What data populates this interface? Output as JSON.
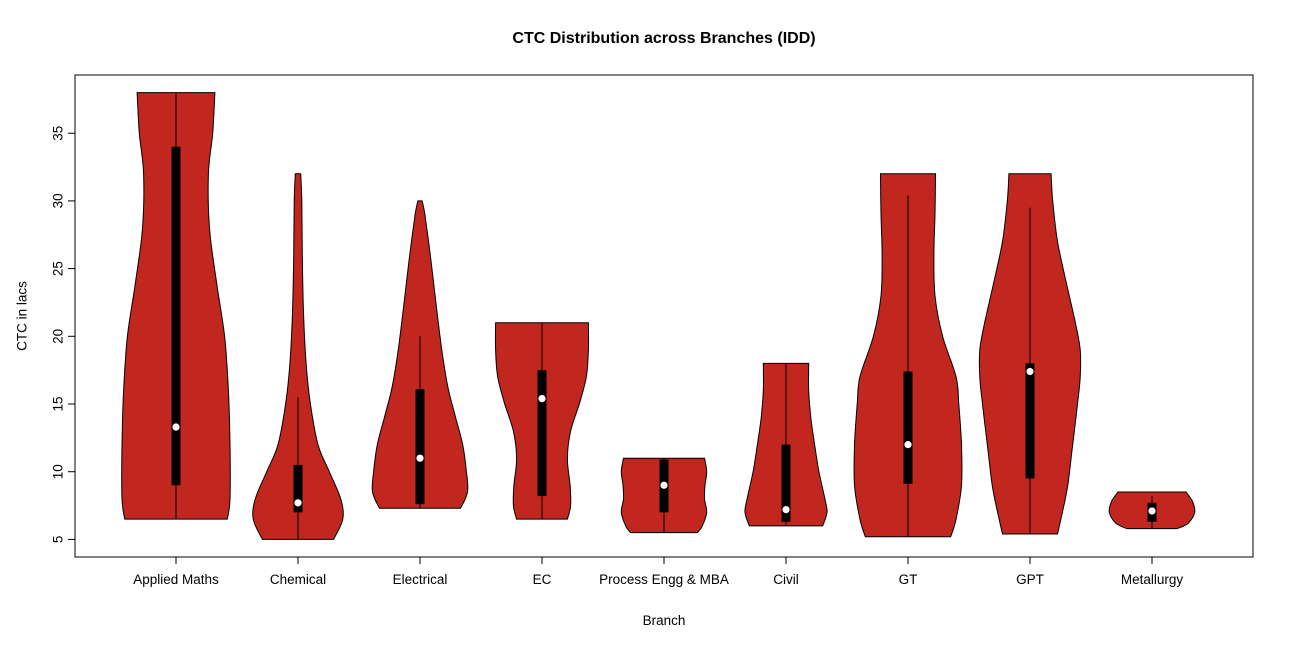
{
  "chart_data": {
    "type": "violin",
    "title": "CTC Distribution across Branches (IDD)",
    "xlabel": "Branch",
    "ylabel": "CTC in lacs",
    "ylim": [
      3.7,
      39.3
    ],
    "yticks": [
      5,
      10,
      15,
      20,
      25,
      30,
      35
    ],
    "grid": false,
    "fill_color": "#C1271E",
    "categories": [
      "Applied Maths",
      "Chemical",
      "Electrical",
      "EC",
      "Process Engg & MBA",
      "Civil",
      "GT",
      "GPT",
      "Metallurgy"
    ],
    "series": [
      {
        "name": "Applied Maths",
        "min": 6.5,
        "max": 38,
        "q1": 9.0,
        "q3": 34.0,
        "median": 13.3,
        "whisker_low": 6.5,
        "whisker_high": 38,
        "shape": [
          [
            6.5,
            0.95
          ],
          [
            8,
            1.0
          ],
          [
            12,
            1.0
          ],
          [
            16,
            0.97
          ],
          [
            20,
            0.9
          ],
          [
            24,
            0.75
          ],
          [
            28,
            0.62
          ],
          [
            32,
            0.6
          ],
          [
            35,
            0.68
          ],
          [
            38,
            0.72
          ]
        ]
      },
      {
        "name": "Chemical",
        "min": 5.0,
        "max": 32,
        "q1": 7.0,
        "q3": 10.5,
        "median": 7.7,
        "whisker_low": 5.0,
        "whisker_high": 15.5,
        "shape": [
          [
            5,
            0.66
          ],
          [
            6.5,
            0.83
          ],
          [
            8,
            0.79
          ],
          [
            10,
            0.58
          ],
          [
            12,
            0.37
          ],
          [
            15,
            0.23
          ],
          [
            18,
            0.15
          ],
          [
            22,
            0.1
          ],
          [
            26,
            0.08
          ],
          [
            30,
            0.07
          ],
          [
            32,
            0.05
          ]
        ]
      },
      {
        "name": "Electrical",
        "min": 7.3,
        "max": 30,
        "q1": 7.6,
        "q3": 16.1,
        "median": 11.0,
        "whisker_low": 7.3,
        "whisker_high": 20.0,
        "shape": [
          [
            7.3,
            0.75
          ],
          [
            8.5,
            0.88
          ],
          [
            10,
            0.86
          ],
          [
            12,
            0.79
          ],
          [
            14,
            0.66
          ],
          [
            16,
            0.53
          ],
          [
            18,
            0.44
          ],
          [
            20,
            0.37
          ],
          [
            23,
            0.28
          ],
          [
            26,
            0.19
          ],
          [
            29,
            0.09
          ],
          [
            30,
            0.04
          ]
        ]
      },
      {
        "name": "EC",
        "min": 6.5,
        "max": 21,
        "q1": 8.2,
        "q3": 17.5,
        "median": 15.4,
        "whisker_low": 6.5,
        "whisker_high": 21,
        "shape": [
          [
            6.5,
            0.47
          ],
          [
            7.5,
            0.53
          ],
          [
            9,
            0.52
          ],
          [
            11,
            0.47
          ],
          [
            13,
            0.53
          ],
          [
            15,
            0.69
          ],
          [
            17,
            0.82
          ],
          [
            19,
            0.86
          ],
          [
            21,
            0.86
          ]
        ]
      },
      {
        "name": "Process Engg & MBA",
        "min": 5.5,
        "max": 11,
        "q1": 7.0,
        "q3": 10.9,
        "median": 9.0,
        "whisker_low": 5.5,
        "whisker_high": 11,
        "shape": [
          [
            5.5,
            0.62
          ],
          [
            6,
            0.71
          ],
          [
            7,
            0.79
          ],
          [
            8,
            0.75
          ],
          [
            9,
            0.76
          ],
          [
            10,
            0.79
          ],
          [
            11,
            0.75
          ]
        ]
      },
      {
        "name": "Civil",
        "min": 6.0,
        "max": 18,
        "q1": 6.3,
        "q3": 12.0,
        "median": 7.2,
        "whisker_low": 6.0,
        "whisker_high": 18,
        "shape": [
          [
            6,
            0.68
          ],
          [
            7,
            0.76
          ],
          [
            8,
            0.72
          ],
          [
            10,
            0.61
          ],
          [
            12,
            0.53
          ],
          [
            14,
            0.46
          ],
          [
            16,
            0.42
          ],
          [
            18,
            0.42
          ]
        ]
      },
      {
        "name": "GT",
        "min": 5.2,
        "max": 32,
        "q1": 9.1,
        "q3": 17.4,
        "median": 12.0,
        "whisker_low": 5.2,
        "whisker_high": 30.4,
        "shape": [
          [
            5.2,
            0.79
          ],
          [
            6.5,
            0.89
          ],
          [
            9,
            0.99
          ],
          [
            12,
            0.99
          ],
          [
            15,
            0.94
          ],
          [
            17,
            0.89
          ],
          [
            20,
            0.64
          ],
          [
            23,
            0.5
          ],
          [
            26,
            0.48
          ],
          [
            29,
            0.5
          ],
          [
            32,
            0.51
          ]
        ]
      },
      {
        "name": "GPT",
        "min": 5.4,
        "max": 32,
        "q1": 9.5,
        "q3": 18.0,
        "median": 17.4,
        "whisker_low": 5.4,
        "whisker_high": 29.5,
        "shape": [
          [
            5.4,
            0.51
          ],
          [
            7,
            0.6
          ],
          [
            9,
            0.7
          ],
          [
            12,
            0.79
          ],
          [
            15,
            0.88
          ],
          [
            17,
            0.93
          ],
          [
            19,
            0.93
          ],
          [
            21,
            0.84
          ],
          [
            24,
            0.67
          ],
          [
            27,
            0.51
          ],
          [
            30,
            0.42
          ],
          [
            32,
            0.39
          ]
        ]
      },
      {
        "name": "Metallurgy",
        "min": 5.8,
        "max": 8.5,
        "q1": 6.3,
        "q3": 7.7,
        "median": 7.1,
        "whisker_low": 5.8,
        "whisker_high": 8.2,
        "shape": [
          [
            5.8,
            0.47
          ],
          [
            6.2,
            0.67
          ],
          [
            7,
            0.79
          ],
          [
            7.8,
            0.75
          ],
          [
            8.5,
            0.63
          ]
        ]
      }
    ]
  }
}
